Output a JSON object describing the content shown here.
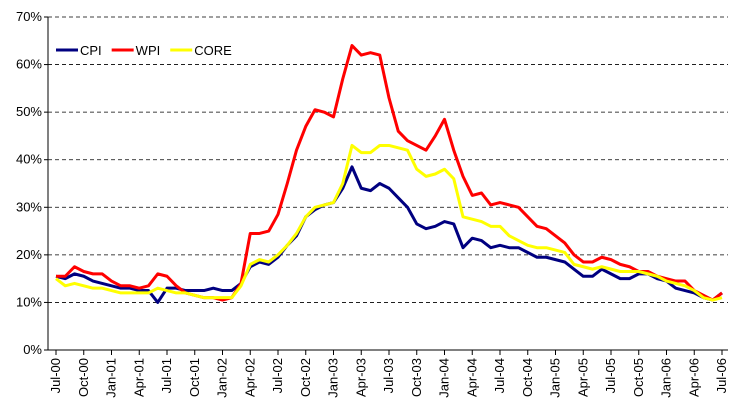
{
  "chart_data": {
    "type": "line",
    "categories": [
      "Jul-00",
      null,
      null,
      "Oct-00",
      null,
      null,
      "Jan-01",
      null,
      null,
      "Apr-01",
      null,
      null,
      "Jul-01",
      null,
      null,
      "Oct-01",
      null,
      null,
      "Jan-02",
      null,
      null,
      "Apr-02",
      null,
      null,
      "Jul-02",
      null,
      null,
      "Oct-02",
      null,
      null,
      "Jan-03",
      null,
      null,
      "Apr-03",
      null,
      null,
      "Jul-03",
      null,
      null,
      "Oct-03",
      null,
      null,
      "Jan-04",
      null,
      null,
      "Apr-04",
      null,
      null,
      "Jul-04",
      null,
      null,
      "Oct-04",
      null,
      null,
      "Jan-05",
      null,
      null,
      "Apr-05",
      null,
      null,
      "Jul-05",
      null,
      null,
      "Oct-05",
      null,
      null,
      "Jan-06",
      null,
      null,
      "Apr-06",
      null,
      null,
      "Jul-06"
    ],
    "series": [
      {
        "name": "CPI",
        "color": "#000080",
        "values": [
          15.5,
          15,
          16,
          15.5,
          14.5,
          14,
          13.5,
          13,
          13,
          12.5,
          12.5,
          10,
          13,
          13,
          12.5,
          12.5,
          12.5,
          13,
          12.5,
          12.5,
          14,
          17.5,
          18.5,
          18,
          19.5,
          22,
          24,
          28,
          29.5,
          30.5,
          31,
          34,
          38.5,
          34,
          33.5,
          35,
          34,
          32,
          30,
          26.5,
          25.5,
          26,
          27,
          26.5,
          21.5,
          23.5,
          23,
          21.5,
          22,
          21.5,
          21.5,
          20.5,
          19.5,
          19.5,
          19,
          18.5,
          17,
          15.5,
          15.5,
          17,
          16,
          15,
          15,
          16,
          16,
          15,
          14.5,
          13,
          12.5,
          12,
          11,
          10.5,
          12
        ]
      },
      {
        "name": "WPI",
        "color": "#ff0000",
        "values": [
          15.5,
          15.5,
          17.5,
          16.5,
          16,
          16,
          14.5,
          13.5,
          13.5,
          13,
          13.5,
          16,
          15.5,
          13.5,
          12,
          11.5,
          11,
          11,
          10.5,
          11,
          14,
          24.5,
          24.5,
          25,
          28.5,
          35,
          42,
          47,
          50.5,
          50,
          49,
          57,
          64,
          62,
          62.5,
          62,
          53,
          46,
          44,
          43,
          42,
          45,
          48.5,
          42,
          36.5,
          32.5,
          33,
          30.5,
          31,
          30.5,
          30,
          28,
          26,
          25.5,
          24,
          22.5,
          20,
          18.5,
          18.5,
          19.5,
          19,
          18,
          17.5,
          16.5,
          16.5,
          15.5,
          15,
          14.5,
          14.5,
          12.5,
          11.5,
          10.5,
          12
        ]
      },
      {
        "name": "CORE",
        "color": "#ffff00",
        "values": [
          15,
          13.5,
          14,
          13.5,
          13,
          13,
          12.5,
          12,
          12,
          12,
          12,
          13,
          12.5,
          12,
          12,
          11.5,
          11,
          11,
          11,
          11,
          13.5,
          18,
          19,
          18.5,
          20,
          22,
          24.5,
          28,
          30,
          30.5,
          31,
          35,
          43,
          41.5,
          41.5,
          43,
          43,
          42.5,
          42,
          38,
          36.5,
          37,
          38,
          36,
          28,
          27.5,
          27,
          26,
          26,
          24,
          23,
          22,
          21.5,
          21.5,
          21,
          20.5,
          18,
          17.5,
          17,
          17.5,
          17,
          16.5,
          16.5,
          16.5,
          16,
          15.5,
          14.5,
          14,
          13.5,
          12.5,
          11,
          10.5,
          11
        ]
      }
    ],
    "ylim": [
      0,
      70
    ],
    "yticks": [
      {
        "value": 0,
        "label": "0%"
      },
      {
        "value": 10,
        "label": "10%"
      },
      {
        "value": 20,
        "label": "20%"
      },
      {
        "value": 30,
        "label": "30%"
      },
      {
        "value": 40,
        "label": "40%"
      },
      {
        "value": 50,
        "label": "50%"
      },
      {
        "value": 60,
        "label": "60%"
      },
      {
        "value": 70,
        "label": "70%"
      }
    ],
    "grid": true,
    "legend": "upper left"
  }
}
